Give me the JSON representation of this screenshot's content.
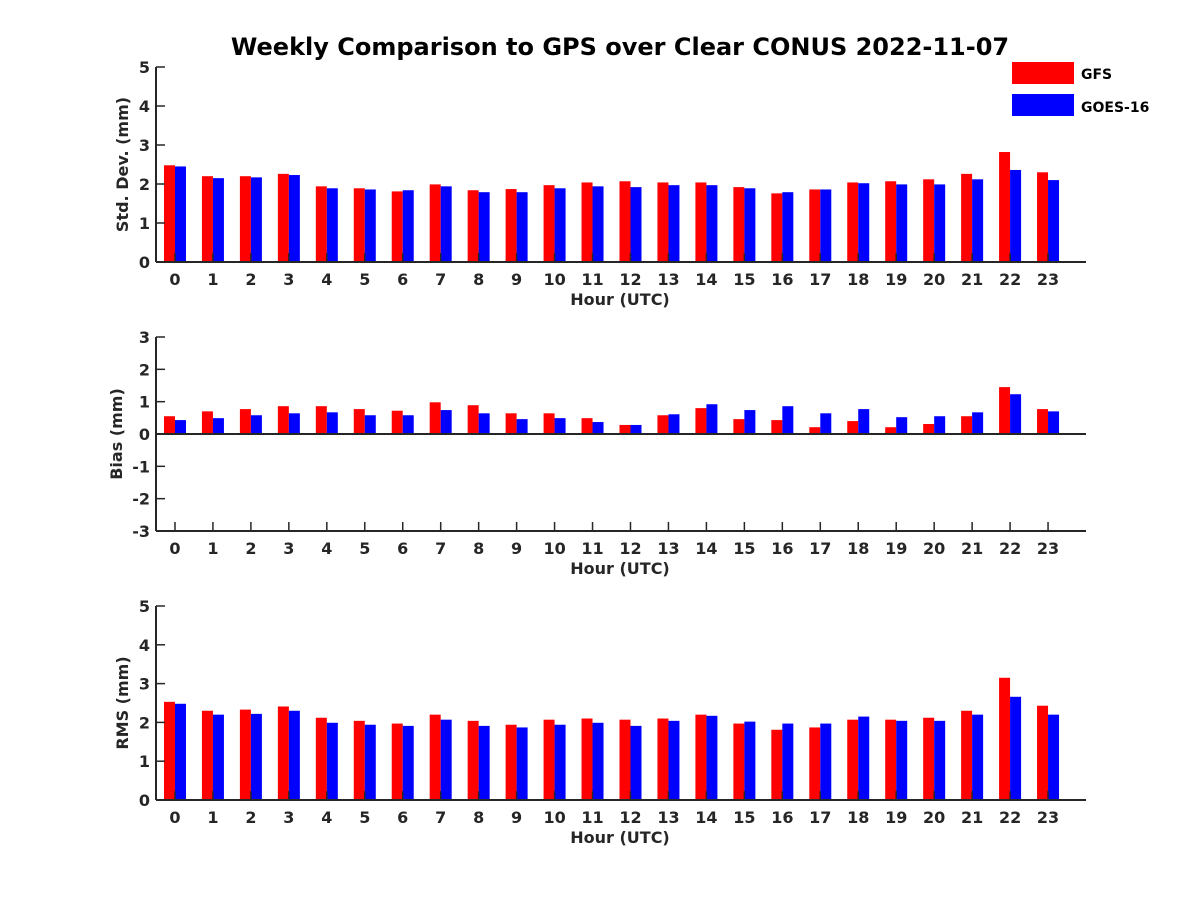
{
  "title": "Weekly Comparison to GPS over Clear CONUS 2022-11-07",
  "colors": {
    "GFS": "#ff0000",
    "GOES-16": "#0000ff"
  },
  "legend": [
    "GFS",
    "GOES-16"
  ],
  "chart_data": [
    {
      "type": "bar",
      "ylabel": "Std. Dev. (mm)",
      "xlabel": "Hour (UTC)",
      "ylim": [
        0,
        5
      ],
      "yticks": [
        "0",
        "1",
        "2",
        "3",
        "4",
        "5"
      ],
      "categories": [
        "0",
        "1",
        "2",
        "3",
        "4",
        "5",
        "6",
        "7",
        "8",
        "9",
        "10",
        "11",
        "12",
        "13",
        "14",
        "15",
        "16",
        "17",
        "18",
        "19",
        "20",
        "21",
        "22",
        "23"
      ],
      "series": [
        {
          "name": "GFS",
          "values": [
            2.48,
            2.2,
            2.2,
            2.26,
            1.94,
            1.89,
            1.81,
            1.99,
            1.84,
            1.87,
            1.97,
            2.04,
            2.07,
            2.04,
            2.04,
            1.92,
            1.76,
            1.86,
            2.04,
            2.07,
            2.12,
            2.26,
            2.82,
            2.3
          ]
        },
        {
          "name": "GOES-16",
          "values": [
            2.45,
            2.15,
            2.17,
            2.23,
            1.89,
            1.86,
            1.84,
            1.94,
            1.79,
            1.79,
            1.89,
            1.94,
            1.92,
            1.97,
            1.97,
            1.89,
            1.79,
            1.86,
            2.02,
            1.99,
            1.99,
            2.12,
            2.36,
            2.1
          ]
        }
      ]
    },
    {
      "type": "bar",
      "ylabel": "Bias (mm)",
      "xlabel": "Hour (UTC)",
      "ylim": [
        -3,
        3
      ],
      "yticks": [
        "-3",
        "-2",
        "-1",
        "0",
        "1",
        "2",
        "3"
      ],
      "categories": [
        "0",
        "1",
        "2",
        "3",
        "4",
        "5",
        "6",
        "7",
        "8",
        "9",
        "10",
        "11",
        "12",
        "13",
        "14",
        "15",
        "16",
        "17",
        "18",
        "19",
        "20",
        "21",
        "22",
        "23"
      ],
      "series": [
        {
          "name": "GFS",
          "values": [
            0.55,
            0.7,
            0.77,
            0.86,
            0.86,
            0.77,
            0.72,
            0.98,
            0.89,
            0.64,
            0.64,
            0.49,
            0.28,
            0.58,
            0.8,
            0.46,
            0.43,
            0.21,
            0.4,
            0.21,
            0.31,
            0.55,
            1.45,
            0.77
          ]
        },
        {
          "name": "GOES-16",
          "values": [
            0.43,
            0.49,
            0.58,
            0.64,
            0.67,
            0.58,
            0.58,
            0.74,
            0.64,
            0.46,
            0.49,
            0.37,
            0.28,
            0.61,
            0.92,
            0.74,
            0.86,
            0.64,
            0.77,
            0.52,
            0.55,
            0.67,
            1.23,
            0.7
          ]
        }
      ]
    },
    {
      "type": "bar",
      "ylabel": "RMS (mm)",
      "xlabel": "Hour (UTC)",
      "ylim": [
        0,
        5
      ],
      "yticks": [
        "0",
        "1",
        "2",
        "3",
        "4",
        "5"
      ],
      "categories": [
        "0",
        "1",
        "2",
        "3",
        "4",
        "5",
        "6",
        "7",
        "8",
        "9",
        "10",
        "11",
        "12",
        "13",
        "14",
        "15",
        "16",
        "17",
        "18",
        "19",
        "20",
        "21",
        "22",
        "23"
      ],
      "series": [
        {
          "name": "GFS",
          "values": [
            2.53,
            2.3,
            2.33,
            2.41,
            2.12,
            2.04,
            1.97,
            2.2,
            2.04,
            1.94,
            2.07,
            2.1,
            2.07,
            2.1,
            2.2,
            1.97,
            1.81,
            1.87,
            2.07,
            2.07,
            2.12,
            2.3,
            3.15,
            2.43
          ]
        },
        {
          "name": "GOES-16",
          "values": [
            2.48,
            2.2,
            2.22,
            2.3,
            1.99,
            1.94,
            1.91,
            2.07,
            1.91,
            1.87,
            1.94,
            1.99,
            1.91,
            2.04,
            2.17,
            2.02,
            1.97,
            1.97,
            2.15,
            2.04,
            2.04,
            2.2,
            2.66,
            2.2
          ]
        }
      ]
    }
  ]
}
